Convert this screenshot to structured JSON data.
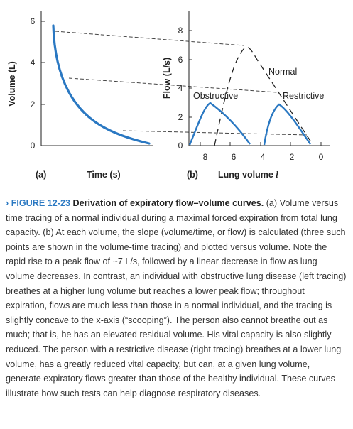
{
  "figure": {
    "panel_a": {
      "ylabel": "Volume (L)",
      "yticks": [
        "6",
        "4",
        "2",
        "0"
      ],
      "tag": "(a)",
      "xlabel": "Time (s)"
    },
    "panel_b": {
      "ylabel": "Flow (L/s)",
      "yticks": [
        "8",
        "6",
        "4",
        "2",
        "0"
      ],
      "xticks": [
        "8",
        "6",
        "4",
        "2",
        "0"
      ],
      "tag": "(b)",
      "xlabel": "Lung volume",
      "xlabel_symbol": "l",
      "labels": {
        "normal": "Normal",
        "obstructive": "Obstructive",
        "restrictive": "Restrictive"
      }
    },
    "colors": {
      "curve": "#2a78c2",
      "caption_number": "#2a78c2"
    }
  },
  "caption": {
    "number": "› FIGURE 12-23",
    "title": "Derivation of expiratory flow–volume curves.",
    "body": " (a) Volume versus time tracing of a normal individual during a maximal forced expiration from total lung capacity. (b) At each volume, the slope (volume/time, or flow) is calculated (three such points are shown in the volume-time tracing) and plotted versus volume. Note the rapid rise to a peak flow of ~7 L/s, followed by a linear decrease in flow as lung volume decreases. In contrast, an individual with obstructive lung disease (left tracing) breathes at a higher lung volume but reaches a lower peak flow; throughout expiration, flows are much less than those in a normal individual, and the tracing is slightly concave to the x-axis (“scooping”). The person also cannot breathe out as much; that is, he has an elevated residual volume. His vital capacity is also slightly reduced. The person with a restrictive disease (right tracing) breathes at a lower lung volume, has a greatly reduced vital capacity, but can, at a given lung volume, generate expiratory flows greater than those of the healthy individual. These curves illustrate how such tests can help diagnose respiratory diseases."
  }
}
